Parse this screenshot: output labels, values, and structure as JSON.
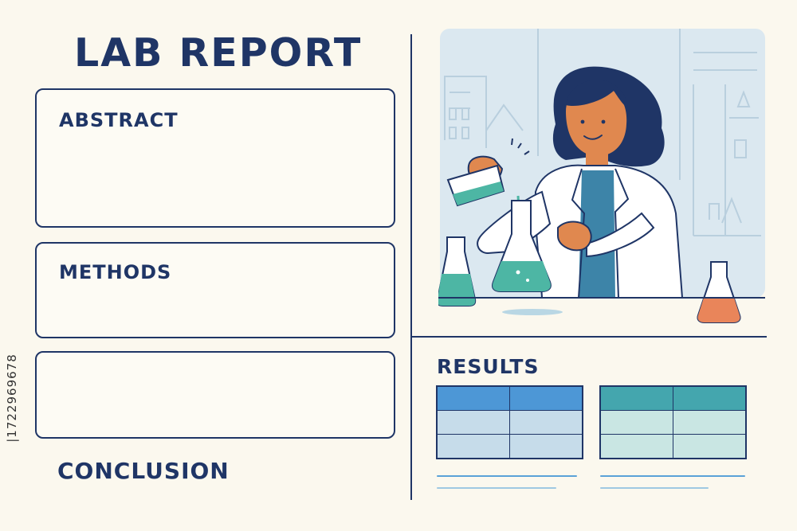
{
  "report": {
    "title": "LAB REPORT",
    "sections": {
      "abstract": "ABSTRACT",
      "methods": "METHODS",
      "conclusion": "CONCLUSION",
      "results": "RESULTS"
    }
  },
  "stock_id": "|1722969678",
  "illustration": {
    "subject": "scientist pouring liquid from a beaker into a flask",
    "icons": [
      "scientist",
      "beaker",
      "conical-flask",
      "lab-bench",
      "city-skyline"
    ]
  },
  "results_tables": [
    {
      "rows": 3,
      "cols": 2,
      "header_color": "#4d97d6",
      "body_color": "#c6dcea"
    },
    {
      "rows": 3,
      "cols": 2,
      "header_color": "#44a6ae",
      "body_color": "#c9e6e3"
    }
  ],
  "colors": {
    "ink": "#1f3566",
    "background": "#fbf8ee",
    "sky": "#dbe8f0",
    "teal_liquid": "#4db6a4",
    "orange_liquid": "#e9855a",
    "skin": "#e0884f"
  }
}
